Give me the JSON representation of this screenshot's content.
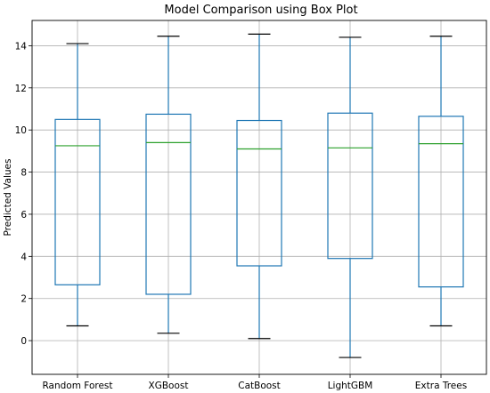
{
  "chart_data": {
    "type": "box",
    "title": "Model Comparison using Box Plot",
    "xlabel": "",
    "ylabel": "Predicted Values",
    "ylim": [
      -1.6,
      15.2
    ],
    "yticks": [
      0,
      2,
      4,
      6,
      8,
      10,
      12,
      14
    ],
    "grid": true,
    "categories": [
      "Random Forest",
      "XGBoost",
      "CatBoost",
      "LightGBM",
      "Extra Trees"
    ],
    "boxes": [
      {
        "whisker_low": 0.7,
        "q1": 2.65,
        "median": 9.25,
        "q3": 10.5,
        "whisker_high": 14.1
      },
      {
        "whisker_low": 0.35,
        "q1": 2.2,
        "median": 9.4,
        "q3": 10.75,
        "whisker_high": 14.45
      },
      {
        "whisker_low": 0.1,
        "q1": 3.55,
        "median": 9.1,
        "q3": 10.45,
        "whisker_high": 14.55
      },
      {
        "whisker_low": -0.8,
        "q1": 3.9,
        "median": 9.15,
        "q3": 10.8,
        "whisker_high": 14.4
      },
      {
        "whisker_low": 0.7,
        "q1": 2.55,
        "median": 9.35,
        "q3": 10.65,
        "whisker_high": 14.45
      }
    ],
    "colors": {
      "box": "#1f77b4",
      "median": "#2ca02c",
      "cap": "#000000",
      "grid": "#b0b0b0"
    }
  }
}
